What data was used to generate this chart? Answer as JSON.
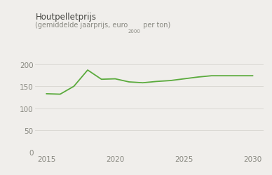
{
  "title": "Houtpelletprijs",
  "subtitle_part1": "(gemiddelde jaarprijs, euro",
  "subtitle_sub": "2000",
  "subtitle_part2": " per ton)",
  "years": [
    2015,
    2016,
    2017,
    2018,
    2019,
    2020,
    2021,
    2022,
    2023,
    2024,
    2025,
    2026,
    2027,
    2028,
    2029,
    2030
  ],
  "values": [
    133,
    132,
    150,
    187,
    166,
    167,
    160,
    158,
    161,
    163,
    167,
    171,
    174,
    174,
    174,
    174
  ],
  "line_color": "#5aaa3c",
  "background_color": "#f0eeeb",
  "plot_bg": "#f0eeeb",
  "grid_color": "#d8d5d0",
  "text_color": "#888880",
  "title_color": "#444440",
  "xlim": [
    2014.2,
    2030.8
  ],
  "ylim": [
    0,
    220
  ],
  "yticks": [
    0,
    50,
    100,
    150,
    200
  ],
  "xticks": [
    2015,
    2020,
    2025,
    2030
  ],
  "title_fontsize": 8.5,
  "subtitle_fontsize": 7.0,
  "tick_fontsize": 7.5,
  "top_bar_color": "#c0bdb8"
}
